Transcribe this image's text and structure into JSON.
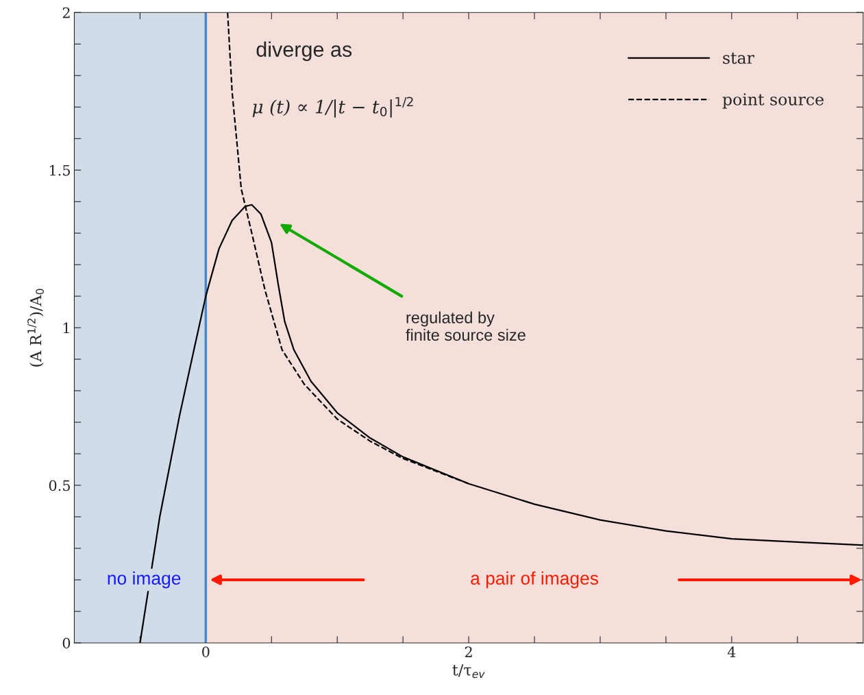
{
  "chart_data": {
    "type": "line",
    "xlabel": "t/τ$_{ev}$",
    "ylabel": "(A R$^{1/2}$)/A$_{0}$",
    "xlim": [
      -1,
      5
    ],
    "ylim": [
      0,
      2
    ],
    "xticks": [
      {
        "value": -0.5,
        "label": null
      },
      0,
      {
        "value": 0.5,
        "label": null
      },
      {
        "value": 1,
        "label": null
      },
      {
        "value": 1.5,
        "label": null
      },
      2,
      {
        "value": 2.5,
        "label": null
      },
      {
        "value": 3,
        "label": null
      },
      {
        "value": 3.5,
        "label": null
      },
      4,
      {
        "value": 4.5,
        "label": null
      }
    ],
    "yticks": [
      0,
      {
        "value": 0.1,
        "label": null
      },
      {
        "value": 0.2,
        "label": null
      },
      {
        "value": 0.3,
        "label": null
      },
      {
        "value": 0.4,
        "label": null
      },
      0.5,
      {
        "value": 0.6,
        "label": null
      },
      {
        "value": 0.7,
        "label": null
      },
      {
        "value": 0.8,
        "label": null
      },
      {
        "value": 0.9,
        "label": null
      },
      1,
      {
        "value": 1.1,
        "label": null
      },
      {
        "value": 1.2,
        "label": null
      },
      {
        "value": 1.3,
        "label": null
      },
      {
        "value": 1.4,
        "label": null
      },
      1.5,
      {
        "value": 1.6,
        "label": null
      },
      {
        "value": 1.7,
        "label": null
      },
      {
        "value": 1.8,
        "label": null
      },
      {
        "value": 1.9,
        "label": null
      },
      2
    ],
    "series": [
      {
        "name": "star",
        "color": "#000000",
        "line_style": "solid",
        "x": [
          -0.5,
          -0.35,
          -0.2,
          -0.09,
          0,
          0.1,
          0.2,
          0.3,
          0.35,
          0.42,
          0.5,
          0.55,
          0.6,
          0.67,
          0.8,
          1.0,
          1.25,
          1.5,
          2,
          2.5,
          3,
          3.5,
          4,
          4.5,
          5
        ],
        "values": [
          0,
          0.4,
          0.72,
          0.93,
          1.1,
          1.25,
          1.34,
          1.385,
          1.39,
          1.36,
          1.27,
          1.14,
          1.02,
          0.93,
          0.83,
          0.73,
          0.65,
          0.59,
          0.505,
          0.44,
          0.39,
          0.355,
          0.33,
          0.32,
          0.31
        ]
      },
      {
        "name": "point source",
        "color": "#000000",
        "line_style": "dashed",
        "x": [
          0.166,
          0.2,
          0.27,
          0.35,
          0.45,
          0.58,
          0.75,
          1.0,
          1.25,
          1.5,
          2
        ],
        "values": [
          2,
          1.75,
          1.44,
          1.3,
          1.12,
          0.93,
          0.82,
          0.71,
          0.64,
          0.585,
          0.505
        ]
      }
    ],
    "bands": [
      {
        "axis": "x",
        "from": -1,
        "to": 0,
        "label": "no image",
        "color": "#d0dce8"
      },
      {
        "axis": "x",
        "from": 0,
        "to": 5,
        "label": "a pair of images",
        "color": "#f4dfdb"
      }
    ],
    "ref_lines": [
      {
        "axis": "x",
        "value": 0,
        "color": "#4a86c8",
        "line_style": "solid"
      }
    ],
    "annotations": [
      "diverge as",
      "μ (t) ∝ 1/|t − t$_{0}$|$^{1/2}$",
      "regulated by\nfinite source size"
    ],
    "legend": "top right",
    "grid": false
  }
}
